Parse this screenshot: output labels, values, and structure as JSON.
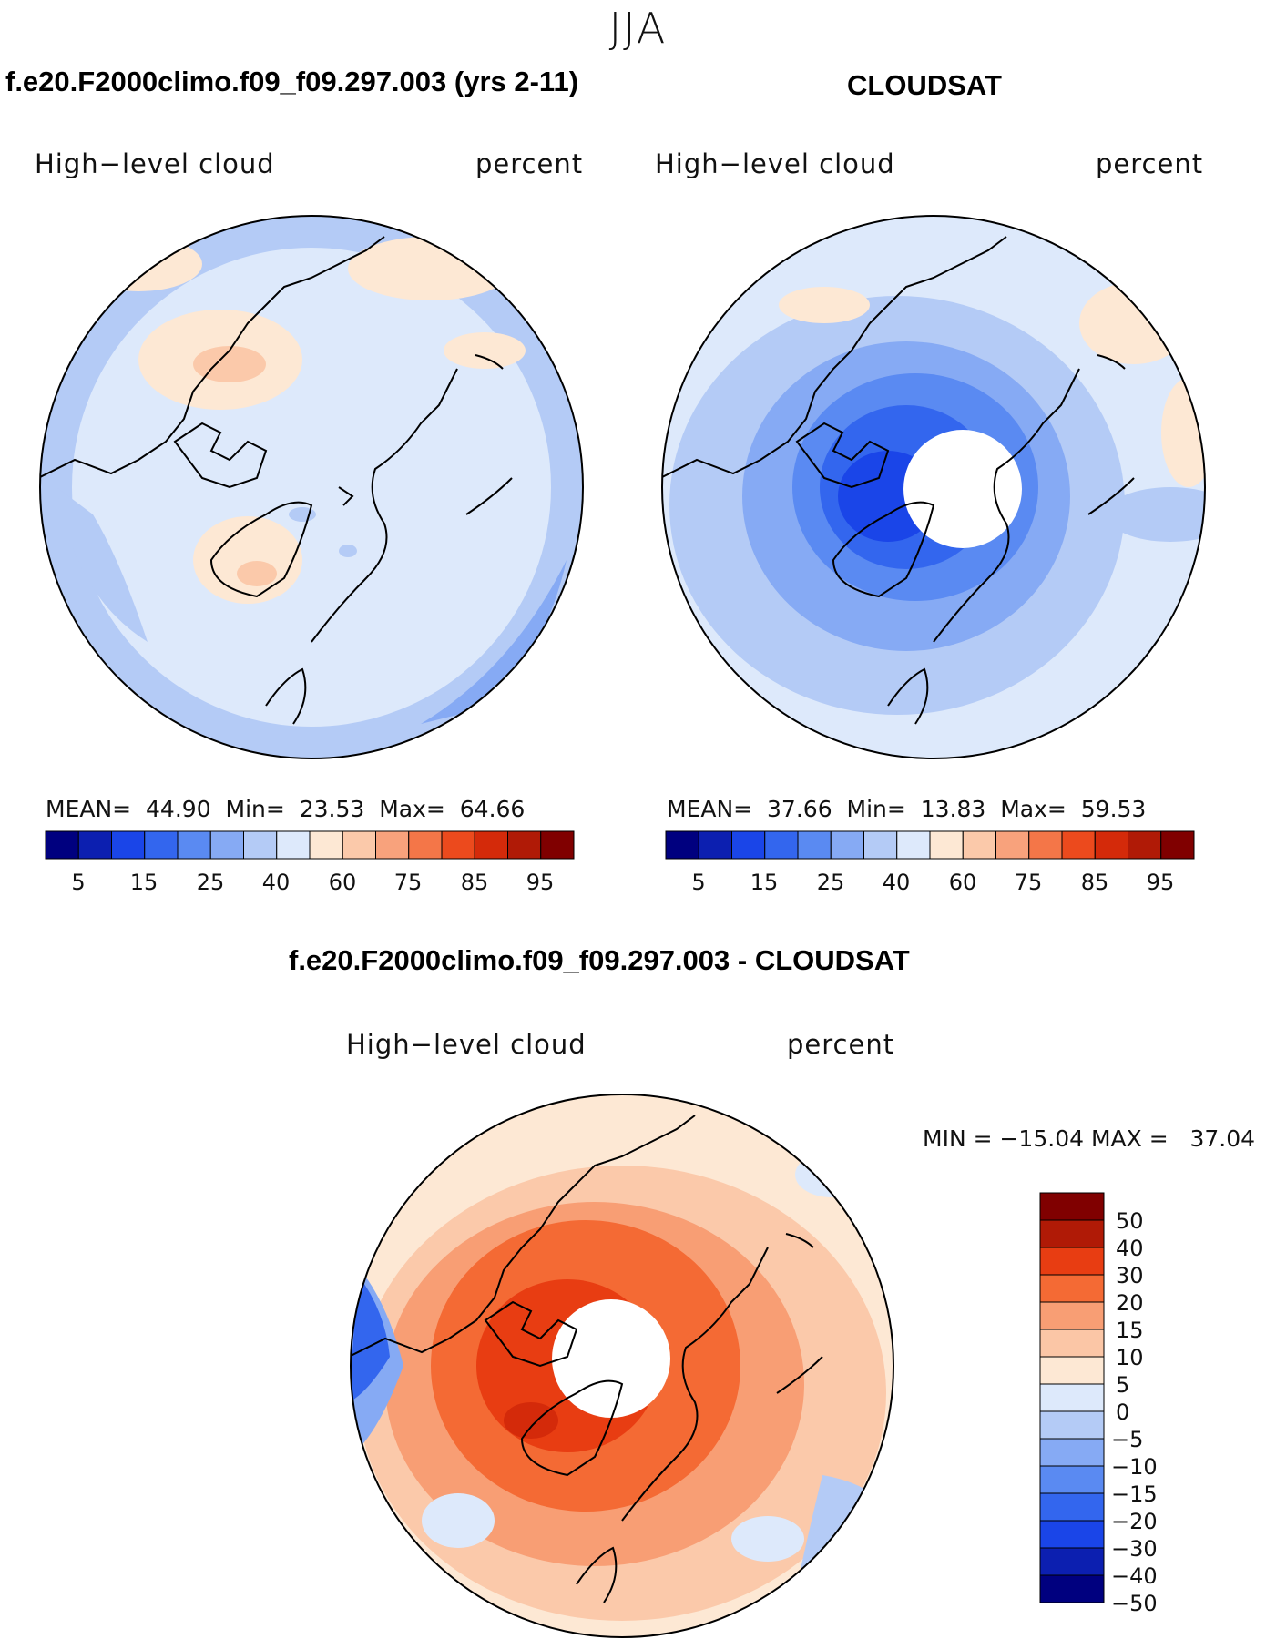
{
  "figure": {
    "season": "JJA",
    "model_title": "f.e20.F2000climo.f09_f09.297.003 (yrs 2-11)",
    "obs_title": "CLOUDSAT",
    "diff_title": "f.e20.F2000climo.f09_f09.297.003 - CLOUDSAT"
  },
  "panels": {
    "model": {
      "variable": "High−level cloud",
      "units": "percent",
      "mean_label": "MEAN=",
      "mean": "44.90",
      "min_label": "Min=",
      "min": "23.53",
      "max_label": "Max=",
      "max": "64.66"
    },
    "obs": {
      "variable": "High−level cloud",
      "units": "percent",
      "mean_label": "MEAN=",
      "mean": "37.66",
      "min_label": "Min=",
      "min": "13.83",
      "max_label": "Max=",
      "max": "59.53"
    },
    "diff": {
      "variable": "High−level cloud",
      "units": "percent",
      "minmax": "MIN = −15.04 MAX =   37.04"
    }
  },
  "colorbars": {
    "abs": {
      "colors": [
        "#00007f",
        "#0c1fb0",
        "#1a45e8",
        "#3366ee",
        "#5a8af2",
        "#86aaf4",
        "#b4cbf6",
        "#dde9fb",
        "#fde8d4",
        "#fbc9aa",
        "#f8a27c",
        "#f47648",
        "#ec4a1d",
        "#d42a0a",
        "#b01a06",
        "#800000"
      ],
      "tick_labels": [
        "5",
        "15",
        "25",
        "40",
        "60",
        "75",
        "85",
        "95"
      ]
    },
    "diff": {
      "colors": [
        "#800000",
        "#b01a06",
        "#e83d12",
        "#f46a34",
        "#f89e74",
        "#fbc6a6",
        "#fde8d4",
        "#dde9fb",
        "#b4cbf6",
        "#86aaf4",
        "#5a8af2",
        "#3366ee",
        "#1a45e8",
        "#0c1fb0",
        "#00007f"
      ],
      "tick_labels": [
        "50",
        "40",
        "30",
        "20",
        "15",
        "10",
        "5",
        "0",
        "−5",
        "−10",
        "−15",
        "−20",
        "−30",
        "−40",
        "−50"
      ]
    }
  }
}
